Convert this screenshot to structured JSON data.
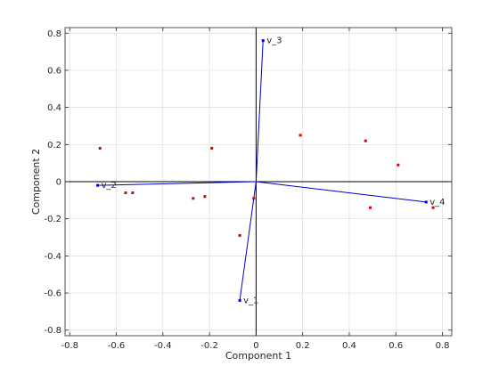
{
  "chart_data": {
    "type": "scatter",
    "title": "",
    "xlabel": "Component 1",
    "ylabel": "Component 2",
    "xlim": [
      -0.82,
      0.84
    ],
    "ylim": [
      -0.83,
      0.83
    ],
    "xticks": [
      "-0.8",
      "-0.6",
      "-0.4",
      "-0.2",
      "0",
      "0.2",
      "0.4",
      "0.6",
      "0.8"
    ],
    "yticks": [
      "-0.8",
      "-0.6",
      "-0.4",
      "-0.2",
      "0",
      "0.2",
      "0.4",
      "0.6",
      "0.8"
    ],
    "grid": true,
    "vectors": [
      {
        "label": "v_1",
        "x": -0.07,
        "y": -0.64
      },
      {
        "label": "v_2",
        "x": -0.68,
        "y": -0.02
      },
      {
        "label": "v_3",
        "x": 0.03,
        "y": 0.76
      },
      {
        "label": "v_4",
        "x": 0.73,
        "y": -0.11
      }
    ],
    "points": [
      {
        "x": -0.67,
        "y": 0.18
      },
      {
        "x": -0.56,
        "y": -0.06
      },
      {
        "x": -0.53,
        "y": -0.06
      },
      {
        "x": -0.27,
        "y": -0.09
      },
      {
        "x": -0.22,
        "y": -0.08
      },
      {
        "x": -0.19,
        "y": 0.18
      },
      {
        "x": -0.07,
        "y": -0.29
      },
      {
        "x": -0.01,
        "y": -0.09
      },
      {
        "x": 0.19,
        "y": 0.25
      },
      {
        "x": 0.47,
        "y": 0.22
      },
      {
        "x": 0.49,
        "y": -0.14
      },
      {
        "x": 0.61,
        "y": 0.09
      },
      {
        "x": 0.76,
        "y": -0.14
      }
    ],
    "colors": {
      "vector": "#0000cc",
      "point": "#dd0000",
      "grid": "#dcdcdc",
      "axis": "#262626",
      "zero_line": "#000000",
      "text": "#262626"
    }
  }
}
